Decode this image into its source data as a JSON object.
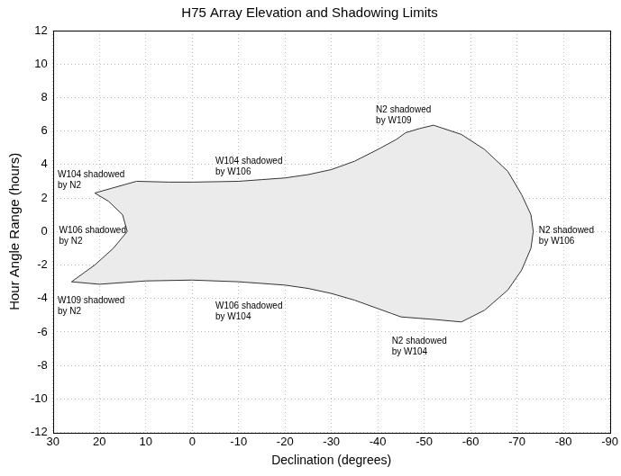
{
  "chart_data": {
    "type": "area",
    "title": "H75 Array Elevation and Shadowing Limits",
    "x_label": "Declination (degrees)",
    "y_label": "Hour Angle Range (hours)",
    "xlim": [
      30,
      -90
    ],
    "xticks": [
      30,
      20,
      10,
      0,
      -10,
      -20,
      -30,
      -40,
      -50,
      -60,
      -70,
      -80,
      -90
    ],
    "ylim": [
      -12,
      12
    ],
    "yticks": [
      -12,
      -10,
      -8,
      -6,
      -4,
      -2,
      0,
      2,
      4,
      6,
      8,
      10,
      12
    ],
    "grid": true,
    "color": "#ebebeb",
    "x": [
      12,
      5,
      0,
      -10,
      -15,
      -20,
      -25,
      -30,
      -35,
      -40,
      -44,
      -46,
      -49,
      -52,
      -58,
      -63,
      -68,
      -71,
      -73,
      -73.5,
      -73,
      -71,
      -68,
      -63,
      -58,
      -52,
      -45,
      -43,
      -40,
      -35,
      -30,
      -25,
      -20,
      -10,
      0,
      10,
      15,
      20,
      26,
      21,
      17,
      14,
      15,
      18,
      21
    ],
    "values": [
      3.0,
      2.95,
      2.95,
      3.0,
      3.1,
      3.2,
      3.4,
      3.7,
      4.2,
      4.9,
      5.5,
      5.9,
      6.15,
      6.35,
      5.8,
      4.9,
      3.6,
      2.2,
      1.0,
      0,
      -1.0,
      -2.3,
      -3.5,
      -4.7,
      -5.4,
      -5.25,
      -5.1,
      -4.9,
      -4.6,
      -4.1,
      -3.7,
      -3.4,
      -3.2,
      -3.0,
      -2.9,
      -2.95,
      -3.05,
      -3.15,
      -3.0,
      -2.0,
      -1.0,
      0,
      1.0,
      1.8,
      2.3
    ],
    "annotations": [
      {
        "text": [
          "W104 shadowed",
          "by N2"
        ]
      },
      {
        "text": [
          "W106 shadowed",
          "by N2"
        ]
      },
      {
        "text": [
          "W109 shadowed",
          "by N2"
        ]
      },
      {
        "text": [
          "W104 shadowed",
          "by W106"
        ]
      },
      {
        "text": [
          "W106 shadowed",
          "by W104"
        ]
      },
      {
        "text": [
          "N2 shadowed",
          "by W109"
        ]
      },
      {
        "text": [
          "N2 shadowed",
          "by W106"
        ]
      },
      {
        "text": [
          "N2 shadowed",
          "by W104"
        ]
      }
    ]
  }
}
